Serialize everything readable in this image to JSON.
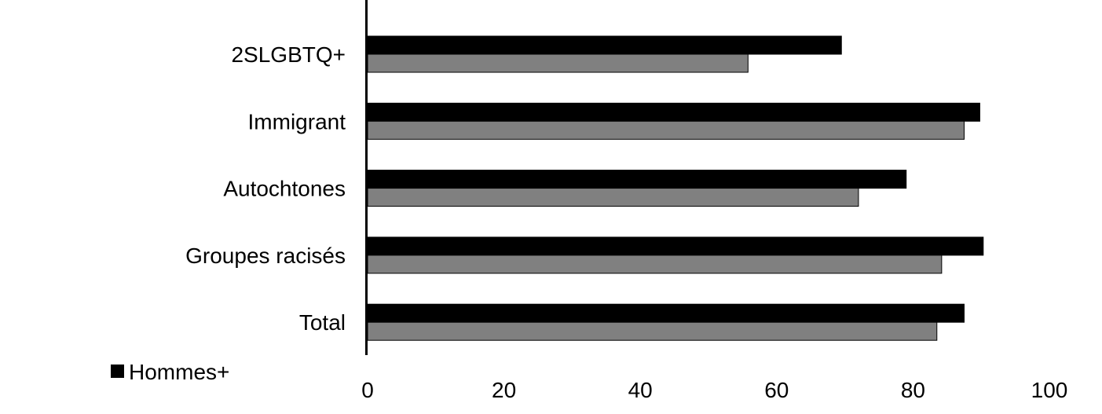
{
  "chart_data": {
    "type": "bar",
    "orientation": "horizontal",
    "categories": [
      "2SLGBTQ+",
      "Immigrant",
      "Autochtones",
      "Groupes racisés",
      "Total"
    ],
    "series": [
      {
        "name": "Hommes+",
        "values": [
          69.5,
          89.8,
          79.0,
          90.3,
          87.5
        ],
        "color": "#000000"
      },
      {
        "values": [
          55.8,
          87.5,
          72.0,
          84.2,
          83.5
        ],
        "color": "#808080"
      }
    ],
    "xlim": [
      0,
      100
    ],
    "xticks": [
      0,
      20,
      40,
      60,
      80,
      100
    ],
    "grid": false,
    "legend_position": "bottom-left"
  }
}
